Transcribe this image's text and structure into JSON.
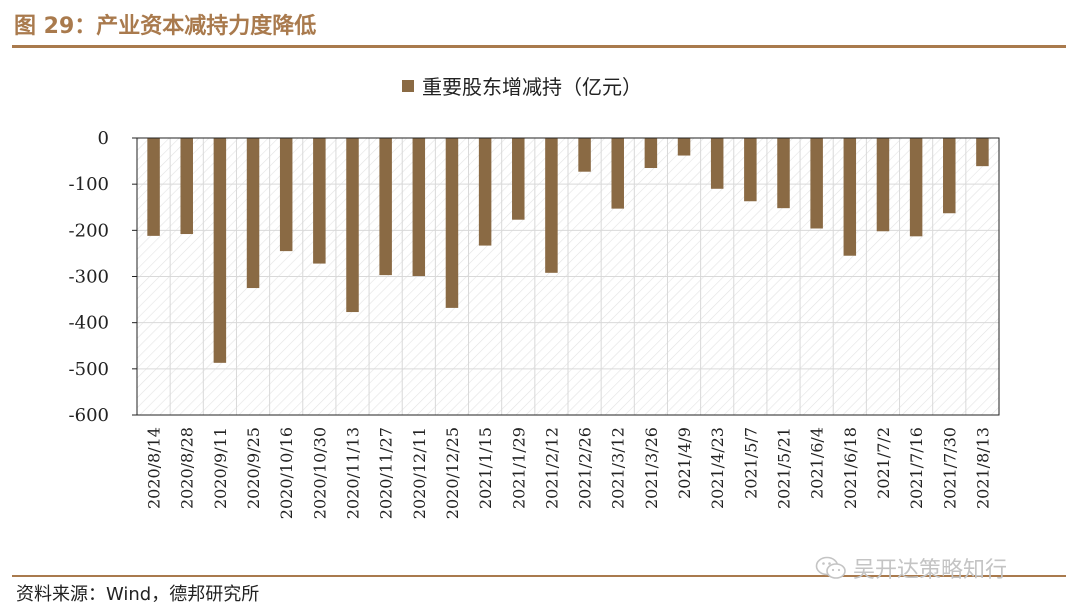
{
  "figure": {
    "title": "图 29：产业资本减持力度降低",
    "source": "资料来源：Wind，德邦研究所",
    "watermark": "吴开达策略知行",
    "watermark_icon": "wechat-icon"
  },
  "colors": {
    "accent": "#a97a4d",
    "bar": "#8a6a44",
    "grid": "#d9d9d9",
    "hatch": "#e3e3e3"
  },
  "chart_data": {
    "type": "bar",
    "title": "",
    "xlabel": "",
    "ylabel": "",
    "ylim": [
      -600,
      0
    ],
    "yticks": [
      0,
      -100,
      -200,
      -300,
      -400,
      -500,
      -600
    ],
    "grid": true,
    "legend_position": "top-center",
    "categories": [
      "2020/8/14",
      "2020/8/28",
      "2020/9/11",
      "2020/9/25",
      "2020/10/16",
      "2020/10/30",
      "2020/11/13",
      "2020/11/27",
      "2020/12/11",
      "2020/12/25",
      "2021/1/15",
      "2021/1/29",
      "2021/2/12",
      "2021/2/26",
      "2021/3/12",
      "2021/3/26",
      "2021/4/9",
      "2021/4/23",
      "2021/5/7",
      "2021/5/21",
      "2021/6/4",
      "2021/6/18",
      "2021/7/2",
      "2021/7/16",
      "2021/7/30",
      "2021/8/13"
    ],
    "series": [
      {
        "name": "重要股东增减持（亿元）",
        "values": [
          -212,
          -208,
          -487,
          -325,
          -245,
          -272,
          -377,
          -297,
          -299,
          -368,
          -233,
          -177,
          -292,
          -73,
          -153,
          -65,
          -38,
          -110,
          -137,
          -152,
          -196,
          -255,
          -202,
          -213,
          -163,
          -61
        ]
      }
    ]
  }
}
